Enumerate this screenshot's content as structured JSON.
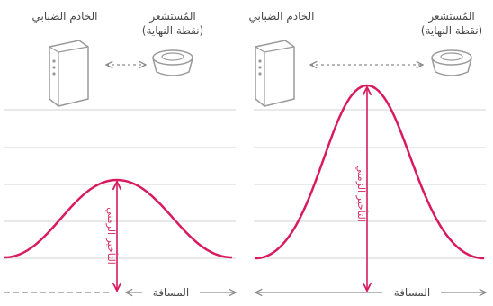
{
  "left_panel": {
    "server_label": "الخادم الضبابي",
    "sensor_label_line1": "المُستشعر",
    "sensor_label_line2": "(نقطة النهاية)",
    "delay_label": "التأخير الزمني",
    "distance_label": "المسافة"
  },
  "right_panel": {
    "server_label": "الخادم الضبابي",
    "sensor_label_line1": "المُستشعر",
    "sensor_label_line2": "(نقطة النهاية)",
    "delay_label": "التأخير الزمني",
    "distance_label": "المسافة"
  },
  "colors": {
    "curve": "#d81b60",
    "grid": "#d3d3d3",
    "arrow": "#8a8a8a",
    "device": "#9a9a9a"
  }
}
